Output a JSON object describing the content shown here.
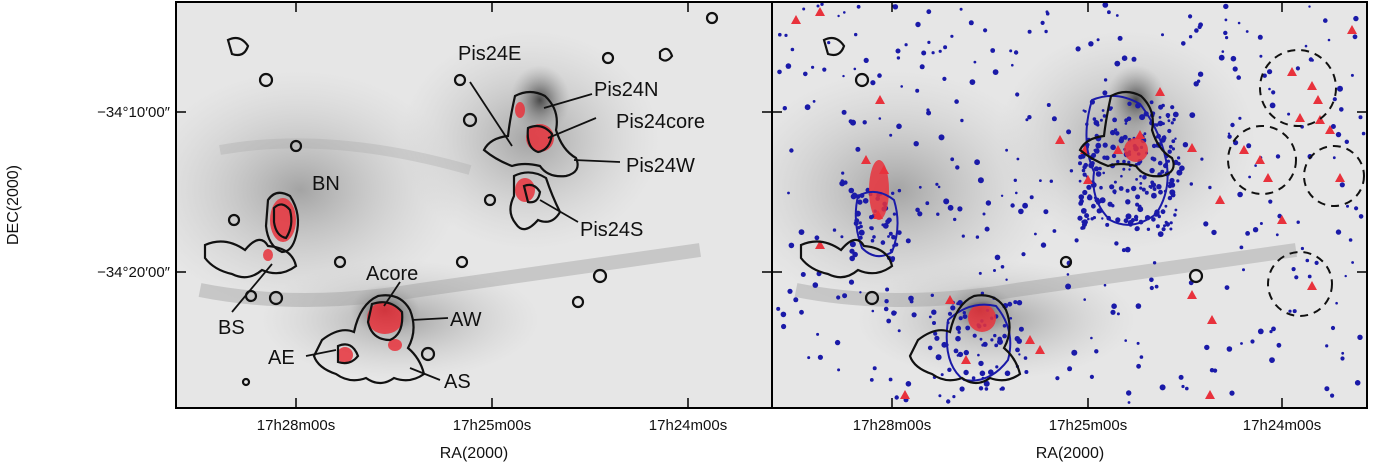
{
  "figure": {
    "left_panel": {
      "labels": {
        "pis24e": "Pis24E",
        "pis24n": "Pis24N",
        "pis24core": "Pis24core",
        "pis24w": "Pis24W",
        "pis24s": "Pis24S",
        "bn": "BN",
        "bs": "BS",
        "acore": "Acore",
        "aw": "AW",
        "ae": "AE",
        "as": "AS"
      }
    },
    "x_axis": {
      "label": "RA(2000)",
      "ticks_left": [
        "17h28m00s",
        "17h25m00s",
        "17h24m00s"
      ],
      "ticks_right": [
        "17h28m00s",
        "17h25m00s",
        "17h24m00s"
      ]
    },
    "y_axis": {
      "label": "DEC(2000)",
      "ticks": [
        "−34°10′00″",
        "−34°20′00″"
      ]
    },
    "colors": {
      "contour": "#111111",
      "emission": "#e8323c",
      "stars": "#1a1aa8",
      "frame": "#000000"
    }
  }
}
